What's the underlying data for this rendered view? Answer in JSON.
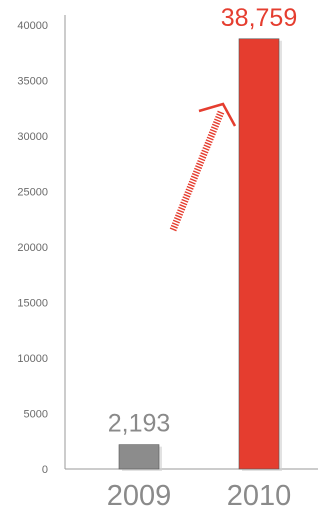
{
  "chart_data": {
    "type": "bar",
    "categories": [
      "2009",
      "2010"
    ],
    "values": [
      2193,
      38759
    ],
    "data_labels": [
      "2,193",
      "38,759"
    ],
    "y_ticks": [
      "0",
      "5000",
      "10000",
      "15000",
      "20000",
      "25000",
      "30000",
      "35000",
      "40000"
    ],
    "ylim": [
      0,
      40000
    ],
    "title": "",
    "xlabel": "",
    "ylabel": "",
    "grid": false,
    "legend": "none",
    "colors": {
      "2009": "#8c8c8c",
      "2010": "#e53d2f",
      "label_2009": "#8a8a8a",
      "label_2010": "#e53d2f",
      "arrow": "#e53d2f",
      "axis": "#9a9a9a"
    },
    "annotation": {
      "type": "growth-arrow"
    }
  }
}
